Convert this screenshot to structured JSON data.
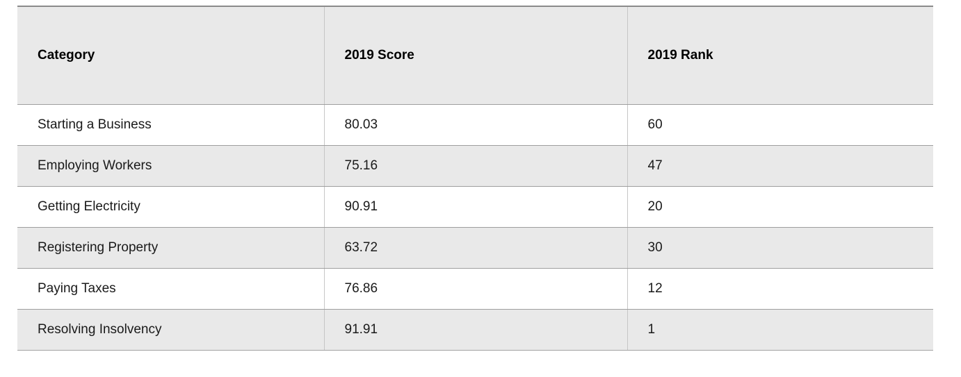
{
  "table": {
    "columns": [
      {
        "key": "category",
        "label": "Category"
      },
      {
        "key": "score",
        "label": "2019 Score"
      },
      {
        "key": "rank",
        "label": "2019 Rank"
      }
    ],
    "rows": [
      {
        "category": "Starting a Business",
        "score": "80.03",
        "rank": "60"
      },
      {
        "category": "Employing Workers",
        "score": "75.16",
        "rank": "47"
      },
      {
        "category": "Getting Electricity",
        "score": "90.91",
        "rank": "20"
      },
      {
        "category": "Registering Property",
        "score": "63.72",
        "rank": "30"
      },
      {
        "category": "Paying Taxes",
        "score": "76.86",
        "rank": "12"
      },
      {
        "category": "Resolving Insolvency",
        "score": "91.91",
        "rank": "1"
      }
    ]
  },
  "colors": {
    "band_gray": "#e9e9e9",
    "row_border": "#9e9e9e",
    "column_divider": "#c6c6c6",
    "top_border": "#8a8a8a",
    "bottom_border": "#a3a3a3",
    "text": "#1a1a1a",
    "header_text": "#000000"
  },
  "chart_data": {
    "type": "table",
    "columns": [
      "Category",
      "2019 Score",
      "2019 Rank"
    ],
    "rows": [
      [
        "Starting a Business",
        80.03,
        60
      ],
      [
        "Employing Workers",
        75.16,
        47
      ],
      [
        "Getting Electricity",
        90.91,
        20
      ],
      [
        "Registering Property",
        63.72,
        30
      ],
      [
        "Paying Taxes",
        76.86,
        12
      ],
      [
        "Resolving Insolvency",
        91.91,
        1
      ]
    ],
    "title": "",
    "legend": false,
    "grid": "row-and-column-rules",
    "zebra_striping": true
  }
}
